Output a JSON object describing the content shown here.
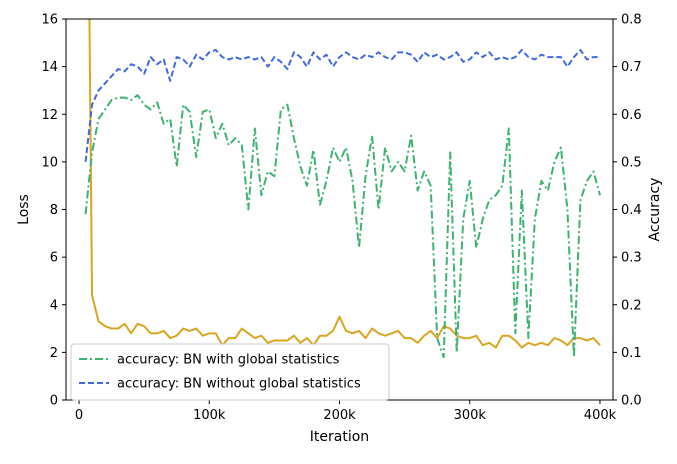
{
  "chart_data": {
    "type": "line",
    "xlabel": "Iteration",
    "ylabel_left": "Loss",
    "ylabel_right": "Accuracy",
    "xlim": [
      -10000,
      410000
    ],
    "ylim_left": [
      0,
      16
    ],
    "ylim_right": [
      0.0,
      0.8
    ],
    "x_ticks": [
      0,
      100000,
      200000,
      300000,
      400000
    ],
    "x_tick_labels": [
      "0",
      "100k",
      "200k",
      "300k",
      "400k"
    ],
    "left_ticks": [
      0,
      2,
      4,
      6,
      8,
      10,
      12,
      14,
      16
    ],
    "left_tick_labels": [
      "0",
      "2",
      "4",
      "6",
      "8",
      "10",
      "12",
      "14",
      "16"
    ],
    "right_ticks": [
      0.0,
      0.1,
      0.2,
      0.3,
      0.4,
      0.5,
      0.6,
      0.7,
      0.8
    ],
    "right_tick_labels": [
      "0.0",
      "0.1",
      "0.2",
      "0.3",
      "0.4",
      "0.5",
      "0.6",
      "0.7",
      "0.8"
    ],
    "grid": false,
    "legend_position": "lower-left",
    "series": [
      {
        "name": "accuracy: BN with global statistics",
        "axis": "right",
        "style": "dashdot",
        "color": "#3cb371",
        "x": [
          5000,
          10000,
          15000,
          20000,
          25000,
          30000,
          35000,
          40000,
          45000,
          50000,
          55000,
          60000,
          65000,
          70000,
          75000,
          80000,
          85000,
          90000,
          95000,
          100000,
          105000,
          110000,
          115000,
          120000,
          125000,
          130000,
          135000,
          140000,
          145000,
          150000,
          155000,
          160000,
          165000,
          170000,
          175000,
          180000,
          185000,
          190000,
          195000,
          200000,
          205000,
          210000,
          215000,
          220000,
          225000,
          230000,
          235000,
          240000,
          245000,
          250000,
          255000,
          260000,
          265000,
          270000,
          275000,
          280000,
          285000,
          290000,
          295000,
          300000,
          305000,
          310000,
          315000,
          320000,
          325000,
          330000,
          335000,
          340000,
          345000,
          350000,
          355000,
          360000,
          365000,
          370000,
          375000,
          380000,
          385000,
          390000,
          395000,
          400000
        ],
        "values": [
          0.39,
          0.52,
          0.59,
          0.61,
          0.63,
          0.635,
          0.635,
          0.63,
          0.64,
          0.62,
          0.61,
          0.625,
          0.58,
          0.59,
          0.49,
          0.62,
          0.605,
          0.51,
          0.605,
          0.61,
          0.55,
          0.58,
          0.535,
          0.55,
          0.535,
          0.4,
          0.57,
          0.43,
          0.48,
          0.47,
          0.61,
          0.62,
          0.55,
          0.49,
          0.45,
          0.525,
          0.41,
          0.46,
          0.53,
          0.5,
          0.53,
          0.46,
          0.32,
          0.47,
          0.555,
          0.4,
          0.53,
          0.48,
          0.5,
          0.48,
          0.555,
          0.44,
          0.48,
          0.45,
          0.13,
          0.09,
          0.52,
          0.1,
          0.38,
          0.46,
          0.32,
          0.38,
          0.42,
          0.43,
          0.45,
          0.57,
          0.14,
          0.44,
          0.13,
          0.38,
          0.46,
          0.44,
          0.5,
          0.53,
          0.4,
          0.09,
          0.42,
          0.46,
          0.48,
          0.43
        ]
      },
      {
        "name": "accuracy: BN without global statistics",
        "axis": "right",
        "style": "dashed",
        "color": "#4169e1",
        "x": [
          5000,
          10000,
          15000,
          20000,
          25000,
          30000,
          35000,
          40000,
          45000,
          50000,
          55000,
          60000,
          65000,
          70000,
          75000,
          80000,
          85000,
          90000,
          95000,
          100000,
          105000,
          110000,
          115000,
          120000,
          125000,
          130000,
          135000,
          140000,
          145000,
          150000,
          155000,
          160000,
          165000,
          170000,
          175000,
          180000,
          185000,
          190000,
          195000,
          200000,
          205000,
          210000,
          215000,
          220000,
          225000,
          230000,
          235000,
          240000,
          245000,
          250000,
          255000,
          260000,
          265000,
          270000,
          275000,
          280000,
          285000,
          290000,
          295000,
          300000,
          305000,
          310000,
          315000,
          320000,
          325000,
          330000,
          335000,
          340000,
          345000,
          350000,
          355000,
          360000,
          365000,
          370000,
          375000,
          380000,
          385000,
          390000,
          395000,
          400000
        ],
        "values": [
          0.5,
          0.62,
          0.65,
          0.665,
          0.68,
          0.695,
          0.69,
          0.705,
          0.7,
          0.685,
          0.72,
          0.705,
          0.715,
          0.67,
          0.72,
          0.715,
          0.7,
          0.725,
          0.715,
          0.73,
          0.735,
          0.72,
          0.715,
          0.72,
          0.715,
          0.72,
          0.715,
          0.72,
          0.7,
          0.72,
          0.71,
          0.695,
          0.73,
          0.72,
          0.7,
          0.73,
          0.715,
          0.725,
          0.7,
          0.72,
          0.73,
          0.72,
          0.715,
          0.725,
          0.72,
          0.73,
          0.72,
          0.715,
          0.73,
          0.73,
          0.725,
          0.71,
          0.73,
          0.72,
          0.725,
          0.715,
          0.72,
          0.73,
          0.71,
          0.715,
          0.73,
          0.72,
          0.73,
          0.715,
          0.72,
          0.715,
          0.72,
          0.735,
          0.72,
          0.715,
          0.725,
          0.72,
          0.72,
          0.72,
          0.7,
          0.72,
          0.735,
          0.715,
          0.72,
          0.72
        ]
      },
      {
        "axis": "left",
        "style": "solid",
        "color": "#daa520",
        "x": [
          8000,
          10000,
          15000,
          20000,
          25000,
          30000,
          35000,
          40000,
          45000,
          50000,
          55000,
          60000,
          65000,
          70000,
          75000,
          80000,
          85000,
          90000,
          95000,
          100000,
          105000,
          110000,
          115000,
          120000,
          125000,
          130000,
          135000,
          140000,
          145000,
          150000,
          155000,
          160000,
          165000,
          170000,
          175000,
          180000,
          185000,
          190000,
          195000,
          200000,
          205000,
          210000,
          215000,
          220000,
          225000,
          230000,
          235000,
          240000,
          245000,
          250000,
          255000,
          260000,
          265000,
          270000,
          275000,
          280000,
          285000,
          290000,
          295000,
          300000,
          305000,
          310000,
          315000,
          320000,
          325000,
          330000,
          335000,
          340000,
          345000,
          350000,
          355000,
          360000,
          365000,
          370000,
          375000,
          380000,
          385000,
          390000,
          395000,
          400000
        ],
        "values": [
          16.0,
          4.4,
          3.3,
          3.1,
          3.0,
          3.0,
          3.2,
          2.8,
          3.2,
          3.1,
          2.8,
          2.8,
          2.9,
          2.6,
          2.7,
          3.0,
          2.9,
          3.0,
          2.7,
          2.8,
          2.8,
          2.3,
          2.6,
          2.6,
          3.0,
          2.8,
          2.6,
          2.7,
          2.4,
          2.5,
          2.5,
          2.5,
          2.7,
          2.4,
          2.6,
          2.3,
          2.7,
          2.7,
          2.9,
          3.5,
          2.9,
          2.8,
          2.9,
          2.6,
          3.0,
          2.8,
          2.7,
          2.8,
          2.9,
          2.6,
          2.6,
          2.4,
          2.7,
          2.9,
          2.6,
          3.1,
          3.0,
          2.7,
          2.6,
          2.6,
          2.7,
          2.3,
          2.4,
          2.2,
          2.7,
          2.7,
          2.5,
          2.2,
          2.4,
          2.3,
          2.4,
          2.3,
          2.6,
          2.5,
          2.3,
          2.6,
          2.6,
          2.5,
          2.6,
          2.3
        ]
      }
    ]
  }
}
